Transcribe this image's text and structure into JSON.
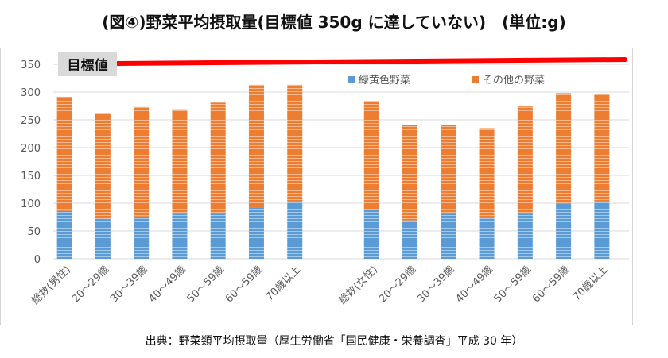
{
  "title": "(図④)野菜平均摂取量(目標値 350g に達していない)　(単位:g)",
  "source": "出典：野菜類平均摂取量（厚生労働省「国民健康・栄養調査」平成 30 年）",
  "chart_data": {
    "type": "bar",
    "stacked": true,
    "categories": [
      "総数(男性)",
      "20～29歳",
      "30～39歳",
      "40～49歳",
      "50～59歳",
      "60～59歳",
      "70歳以上",
      "",
      "総数(女性)",
      "20～29歳",
      "30～39歳",
      "40～49歳",
      "50～59歳",
      "60～59歳",
      "70歳以上"
    ],
    "series": [
      {
        "name": "緑黄色野菜",
        "color": "#5b9bd5",
        "values": [
          86,
          72,
          76,
          82,
          80,
          92,
          103,
          null,
          90,
          69,
          81,
          74,
          80,
          99,
          104
        ]
      },
      {
        "name": "その他の野菜",
        "color": "#ed7d31",
        "values": [
          205,
          190,
          197,
          187,
          201,
          221,
          210,
          null,
          194,
          172,
          160,
          161,
          194,
          199,
          193
        ]
      }
    ],
    "yticks": [
      0,
      50,
      100,
      150,
      200,
      250,
      300,
      350
    ],
    "ylim": [
      0,
      350
    ],
    "grid": true,
    "legend_position": "top-right",
    "target": {
      "label": "目標値",
      "value": 350,
      "color": "#ff0000"
    }
  }
}
